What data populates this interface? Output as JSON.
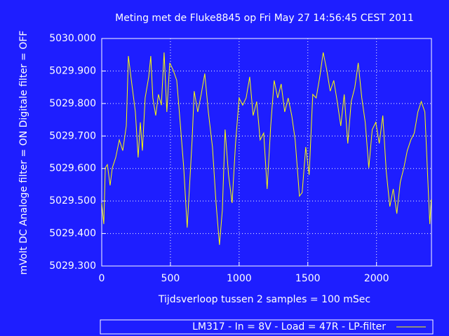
{
  "chart_data": {
    "type": "line",
    "title": "Meting met de Fluke8845 op Fri May 27 14:56:45 CEST 2011",
    "x_label": "Tijdsverloop tussen 2 samples = 100 mSec",
    "y_label": "mVolt DC   Analoge filter = ON   Digitale filter = OFF",
    "xlim": [
      0,
      2400
    ],
    "ylim": [
      5029.3,
      5030.0
    ],
    "xticks": [
      0,
      500,
      1000,
      1500,
      2000
    ],
    "yticks": [
      {
        "value": 5029.3,
        "label": "5029.300"
      },
      {
        "value": 5029.4,
        "label": "5029.400"
      },
      {
        "value": 5029.5,
        "label": "5029.500"
      },
      {
        "value": 5029.6,
        "label": "5029.600"
      },
      {
        "value": 5029.7,
        "label": "5029.700"
      },
      {
        "value": 5029.8,
        "label": "5029.800"
      },
      {
        "value": 5029.9,
        "label": "5029.900"
      },
      {
        "value": 5030.0,
        "label": "5030.000"
      }
    ],
    "grid": true,
    "legend": "bottom",
    "x": [
      0,
      15,
      26,
      41,
      61,
      77,
      102,
      128,
      153,
      179,
      194,
      219,
      245,
      265,
      281,
      296,
      316,
      342,
      357,
      372,
      393,
      413,
      434,
      454,
      474,
      495,
      520,
      546,
      571,
      597,
      622,
      638,
      658,
      673,
      699,
      724,
      750,
      776,
      806,
      832,
      857,
      878,
      898,
      923,
      949,
      974,
      1000,
      1026,
      1051,
      1077,
      1102,
      1128,
      1153,
      1179,
      1204,
      1230,
      1255,
      1281,
      1306,
      1332,
      1357,
      1383,
      1408,
      1439,
      1459,
      1485,
      1510,
      1536,
      1561,
      1587,
      1612,
      1638,
      1663,
      1689,
      1714,
      1740,
      1765,
      1791,
      1816,
      1842,
      1867,
      1893,
      1918,
      1944,
      1969,
      1995,
      2020,
      2046,
      2071,
      2097,
      2122,
      2148,
      2173,
      2199,
      2224,
      2250,
      2275,
      2301,
      2326,
      2352,
      2372,
      2388,
      2398
    ],
    "series": [
      {
        "name": "LM317 - In = 8V - Load = 47R - LP-filter",
        "color": "#ffff00",
        "values": [
          5029.494,
          5029.429,
          5029.602,
          5029.612,
          5029.548,
          5029.602,
          5029.634,
          5029.688,
          5029.655,
          5029.731,
          5029.946,
          5029.86,
          5029.774,
          5029.634,
          5029.742,
          5029.655,
          5029.817,
          5029.882,
          5029.946,
          5029.817,
          5029.763,
          5029.828,
          5029.795,
          5029.957,
          5029.774,
          5029.925,
          5029.903,
          5029.871,
          5029.742,
          5029.602,
          5029.418,
          5029.537,
          5029.688,
          5029.838,
          5029.774,
          5029.828,
          5029.892,
          5029.774,
          5029.666,
          5029.494,
          5029.365,
          5029.472,
          5029.72,
          5029.58,
          5029.494,
          5029.677,
          5029.817,
          5029.795,
          5029.817,
          5029.882,
          5029.763,
          5029.806,
          5029.688,
          5029.709,
          5029.537,
          5029.731,
          5029.871,
          5029.817,
          5029.86,
          5029.774,
          5029.817,
          5029.763,
          5029.688,
          5029.515,
          5029.526,
          5029.666,
          5029.58,
          5029.828,
          5029.817,
          5029.882,
          5029.957,
          5029.903,
          5029.838,
          5029.871,
          5029.806,
          5029.731,
          5029.828,
          5029.677,
          5029.806,
          5029.849,
          5029.925,
          5029.817,
          5029.742,
          5029.602,
          5029.72,
          5029.742,
          5029.677,
          5029.763,
          5029.591,
          5029.483,
          5029.537,
          5029.461,
          5029.558,
          5029.602,
          5029.655,
          5029.688,
          5029.709,
          5029.774,
          5029.806,
          5029.774,
          5029.58,
          5029.429,
          5029.505
        ]
      }
    ]
  }
}
